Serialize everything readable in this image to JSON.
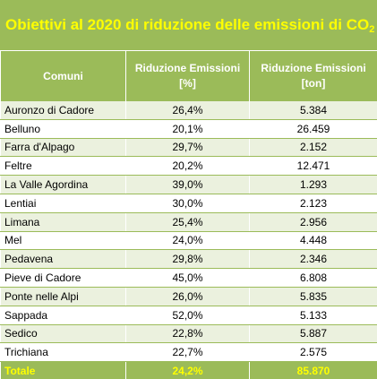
{
  "title": {
    "text": "Obiettivi al 2020 di riduzione delle emissioni di CO",
    "subscript": "2"
  },
  "headers": {
    "comuni": "Comuni",
    "riduzione_pct_line1": "Riduzione Emissioni",
    "riduzione_pct_line2": "[%]",
    "riduzione_ton_line1": "Riduzione Emissioni",
    "riduzione_ton_line2": "[ton]"
  },
  "rows": [
    {
      "comune": "Auronzo di Cadore",
      "pct": "26,4%",
      "ton": "5.384"
    },
    {
      "comune": "Belluno",
      "pct": "20,1%",
      "ton": "26.459"
    },
    {
      "comune": "Farra d'Alpago",
      "pct": "29,7%",
      "ton": "2.152"
    },
    {
      "comune": "Feltre",
      "pct": "20,2%",
      "ton": "12.471"
    },
    {
      "comune": "La Valle Agordina",
      "pct": "39,0%",
      "ton": "1.293"
    },
    {
      "comune": "Lentiai",
      "pct": "30,0%",
      "ton": "2.123"
    },
    {
      "comune": "Limana",
      "pct": "25,4%",
      "ton": "2.956"
    },
    {
      "comune": "Mel",
      "pct": "24,0%",
      "ton": "4.448"
    },
    {
      "comune": "Pedavena",
      "pct": "29,8%",
      "ton": "2.346"
    },
    {
      "comune": "Pieve di Cadore",
      "pct": "45,0%",
      "ton": "6.808"
    },
    {
      "comune": "Ponte nelle Alpi",
      "pct": "26,0%",
      "ton": "5.835"
    },
    {
      "comune": "Sappada",
      "pct": "52,0%",
      "ton": "5.133"
    },
    {
      "comune": "Sedico",
      "pct": "22,8%",
      "ton": "5.887"
    },
    {
      "comune": "Trichiana",
      "pct": "22,7%",
      "ton": "2.575"
    }
  ],
  "total": {
    "label": "Totale",
    "pct": "24,2%",
    "ton": "85.870"
  },
  "colors": {
    "header_green": "#9bbb59",
    "title_yellow": "#ffff00",
    "band_light_green": "#ebf1de"
  }
}
